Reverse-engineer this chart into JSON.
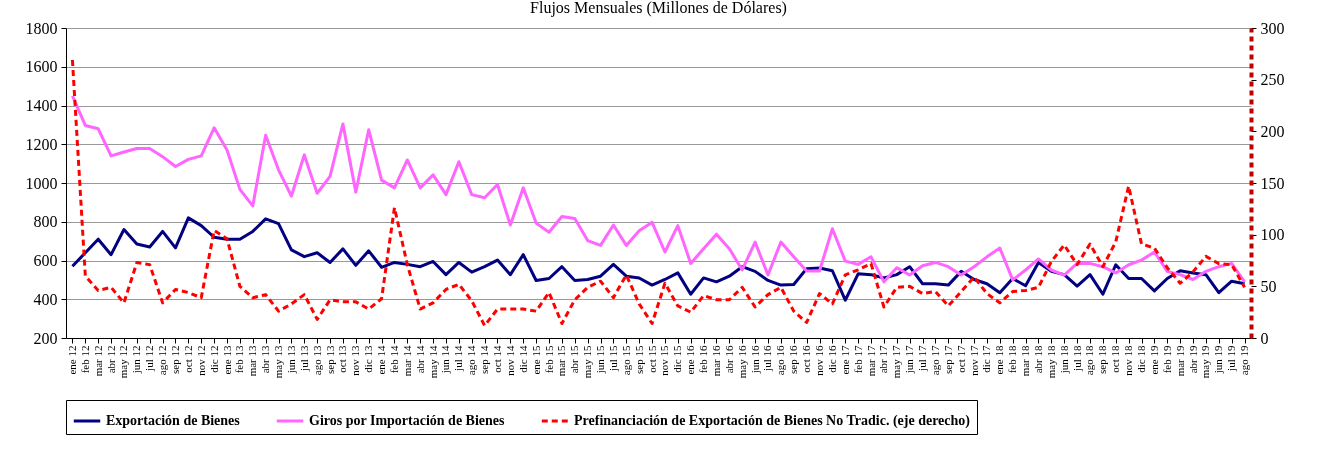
{
  "chart_data": {
    "type": "line",
    "title": "Flujos Mensuales (Millones  de Dólares)",
    "categories": [
      "ene 12",
      "feb 12",
      "mar 12",
      "abr 12",
      "may 12",
      "jun 12",
      "jul 12",
      "ago 12",
      "sep 12",
      "oct 12",
      "nov 12",
      "dic 12",
      "ene 13",
      "feb 13",
      "mar 13",
      "abr 13",
      "may 13",
      "jun 13",
      "jul 13",
      "ago 13",
      "sep 13",
      "oct 13",
      "nov 13",
      "dic 13",
      "ene 14",
      "feb 14",
      "mar 14",
      "abr 14",
      "may 14",
      "jun 14",
      "jul 14",
      "ago 14",
      "sep 14",
      "oct 14",
      "nov 14",
      "dic 14",
      "ene 15",
      "feb 15",
      "mar 15",
      "abr 15",
      "may 15",
      "jun 15",
      "jul 15",
      "ago 15",
      "sep 15",
      "oct 15",
      "nov 15",
      "dic 15",
      "ene 16",
      "feb 16",
      "mar 16",
      "abr 16",
      "may 16",
      "jun 16",
      "jul 16",
      "ago 16",
      "sep 16",
      "oct 16",
      "nov 16",
      "dic 16",
      "ene 17",
      "feb 17",
      "mar 17",
      "abr 17",
      "may 17",
      "jun 17",
      "jul 17",
      "ago 17",
      "sep 17",
      "oct 17",
      "nov 17",
      "dic 17",
      "ene 18",
      "feb 18",
      "mar 18",
      "abr 18",
      "may 18",
      "jun 18",
      "jul 18",
      "ago 18",
      "sep 18",
      "oct 18",
      "nov 18",
      "dic 18",
      "ene 19",
      "feb 19",
      "mar 19",
      "abr 19",
      "may 19",
      "jun 19",
      "jul 19",
      "ago 19"
    ],
    "series": [
      {
        "name": "Exportación de Bienes",
        "color": "#000080",
        "line_style": "solid",
        "values": [
          570,
          640,
          710,
          630,
          760,
          685,
          670,
          750,
          665,
          820,
          780,
          720,
          710,
          710,
          750,
          815,
          790,
          655,
          620,
          640,
          590,
          660,
          575,
          650,
          565,
          590,
          580,
          568,
          595,
          527,
          590,
          540,
          568,
          602,
          527,
          630,
          497,
          507,
          568,
          497,
          502,
          519,
          580,
          519,
          510,
          473,
          502,
          536,
          426,
          510,
          490,
          519,
          568,
          544,
          497,
          473,
          476,
          558,
          561,
          547,
          395,
          531,
          527,
          510,
          527,
          568,
          480,
          480,
          473,
          544,
          502,
          480,
          434,
          507,
          470,
          590,
          544,
          527,
          468,
          527,
          426,
          578,
          507,
          507,
          443,
          507,
          547,
          536,
          527,
          434,
          493,
          480
        ]
      },
      {
        "name": "Giros por Importación de Bienes",
        "color": "#ff66ff",
        "line_style": "solid",
        "values": [
          1450,
          1297,
          1280,
          1140,
          1160,
          1178,
          1178,
          1136,
          1085,
          1122,
          1140,
          1285,
          1170,
          967,
          882,
          1246,
          1068,
          933,
          1145,
          947,
          1034,
          1305,
          953,
          1275,
          1015,
          975,
          1119,
          975,
          1042,
          940,
          1110,
          940,
          924,
          992,
          783,
          975,
          793,
          746,
          827,
          817,
          703,
          678,
          783,
          678,
          754,
          797,
          644,
          780,
          585,
          661,
          736,
          661,
          551,
          695,
          525,
          695,
          619,
          546,
          546,
          764,
          597,
          580,
          619,
          490,
          563,
          525,
          573,
          590,
          568,
          525,
          568,
          619,
          664,
          500,
          551,
          608,
          551,
          525,
          585,
          585,
          568,
          536,
          578,
          602,
          644,
          544,
          527,
          502,
          544,
          568,
          585,
          490
        ]
      },
      {
        "name": "Prefinanciación de Exportación de Bienes No Tradic. (eje derecho)",
        "color": "#ff0000",
        "line_style": "dashed",
        "axis": "y2",
        "values": [
          269,
          60,
          46,
          49,
          34,
          73,
          71,
          34,
          47,
          44,
          39,
          104,
          96,
          50,
          39,
          42,
          26,
          33,
          42,
          18,
          37,
          35,
          35,
          28,
          38,
          126,
          71,
          28,
          34,
          47,
          52,
          36,
          12,
          28,
          28,
          28,
          26,
          44,
          14,
          37,
          49,
          55,
          39,
          61,
          33,
          14,
          53,
          31,
          25,
          41,
          37,
          37,
          49,
          30,
          42,
          49,
          26,
          15,
          43,
          33,
          61,
          66,
          72,
          30,
          49,
          50,
          43,
          45,
          31,
          45,
          59,
          43,
          34,
          45,
          46,
          49,
          74,
          90,
          71,
          91,
          69,
          93,
          147,
          91,
          87,
          68,
          53,
          64,
          79,
          72,
          71,
          49
        ]
      }
    ],
    "ylim": [
      200,
      1800
    ],
    "yticks": [
      200,
      400,
      600,
      800,
      1000,
      1200,
      1400,
      1600,
      1800
    ],
    "y2lim": [
      0,
      300
    ],
    "y2ticks": [
      0,
      50,
      100,
      150,
      200,
      250,
      300
    ],
    "grid": "y",
    "legend": "bottom"
  }
}
